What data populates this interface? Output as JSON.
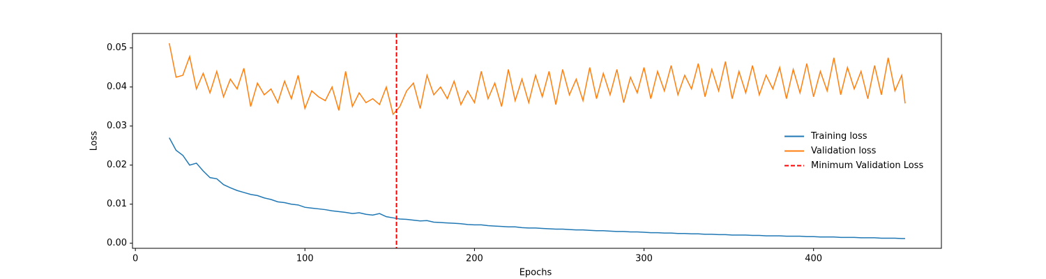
{
  "chart_data": {
    "type": "line",
    "xlabel": "Epochs",
    "ylabel": "Loss",
    "x": [
      20,
      24,
      28,
      32,
      36,
      40,
      44,
      48,
      52,
      56,
      60,
      64,
      68,
      72,
      76,
      80,
      84,
      88,
      92,
      96,
      100,
      104,
      108,
      112,
      116,
      120,
      124,
      128,
      132,
      136,
      140,
      144,
      148,
      152,
      156,
      160,
      164,
      168,
      172,
      176,
      180,
      184,
      188,
      192,
      196,
      200,
      204,
      208,
      212,
      216,
      220,
      224,
      228,
      232,
      236,
      240,
      244,
      248,
      252,
      256,
      260,
      264,
      268,
      272,
      276,
      280,
      284,
      288,
      292,
      296,
      300,
      304,
      308,
      312,
      316,
      320,
      324,
      328,
      332,
      336,
      340,
      344,
      348,
      352,
      356,
      360,
      364,
      368,
      372,
      376,
      380,
      384,
      388,
      392,
      396,
      400,
      404,
      408,
      412,
      416,
      420,
      424,
      428,
      432,
      436,
      440,
      444,
      448,
      452,
      454
    ],
    "series": [
      {
        "name": "Training loss",
        "color": "#1f77b4",
        "values": [
          0.027,
          0.0238,
          0.0225,
          0.02,
          0.0205,
          0.0185,
          0.0168,
          0.0165,
          0.015,
          0.0142,
          0.0135,
          0.013,
          0.0125,
          0.0122,
          0.0116,
          0.0112,
          0.0106,
          0.0104,
          0.01,
          0.0098,
          0.0092,
          0.009,
          0.0088,
          0.0086,
          0.0083,
          0.0081,
          0.0079,
          0.0076,
          0.0078,
          0.0074,
          0.0072,
          0.0076,
          0.0068,
          0.0065,
          0.0062,
          0.0061,
          0.0059,
          0.0057,
          0.0058,
          0.0054,
          0.0053,
          0.0052,
          0.0051,
          0.005,
          0.0048,
          0.0047,
          0.0047,
          0.0045,
          0.0044,
          0.0043,
          0.0042,
          0.0042,
          0.004,
          0.0039,
          0.0039,
          0.0038,
          0.0037,
          0.0036,
          0.0036,
          0.0035,
          0.0034,
          0.0034,
          0.0033,
          0.0032,
          0.0032,
          0.0031,
          0.003,
          0.003,
          0.0029,
          0.0029,
          0.0028,
          0.0027,
          0.0027,
          0.0026,
          0.0026,
          0.0025,
          0.0025,
          0.0024,
          0.0024,
          0.0023,
          0.0023,
          0.0022,
          0.0022,
          0.0021,
          0.0021,
          0.0021,
          0.002,
          0.002,
          0.0019,
          0.0019,
          0.0019,
          0.0018,
          0.0018,
          0.0018,
          0.0017,
          0.0017,
          0.0016,
          0.0016,
          0.0016,
          0.0015,
          0.0015,
          0.0015,
          0.0014,
          0.0014,
          0.0014,
          0.0013,
          0.0013,
          0.0013,
          0.0012,
          0.0012
        ]
      },
      {
        "name": "Validation loss",
        "color": "#ff7f0e",
        "values": [
          0.0512,
          0.0425,
          0.043,
          0.0478,
          0.0395,
          0.0435,
          0.0385,
          0.044,
          0.0375,
          0.042,
          0.0395,
          0.0448,
          0.035,
          0.041,
          0.038,
          0.0395,
          0.036,
          0.0415,
          0.037,
          0.043,
          0.0345,
          0.039,
          0.0375,
          0.0365,
          0.04,
          0.034,
          0.044,
          0.035,
          0.0385,
          0.036,
          0.037,
          0.0355,
          0.04,
          0.033,
          0.035,
          0.039,
          0.041,
          0.0345,
          0.043,
          0.038,
          0.04,
          0.037,
          0.0415,
          0.0355,
          0.039,
          0.036,
          0.044,
          0.037,
          0.041,
          0.035,
          0.0445,
          0.0365,
          0.042,
          0.036,
          0.043,
          0.0375,
          0.044,
          0.0355,
          0.0445,
          0.038,
          0.042,
          0.0365,
          0.045,
          0.037,
          0.0435,
          0.038,
          0.0445,
          0.036,
          0.0425,
          0.0385,
          0.045,
          0.037,
          0.044,
          0.039,
          0.0455,
          0.038,
          0.043,
          0.0395,
          0.046,
          0.0375,
          0.0445,
          0.039,
          0.0465,
          0.037,
          0.044,
          0.0385,
          0.0455,
          0.038,
          0.043,
          0.0395,
          0.045,
          0.037,
          0.0445,
          0.0385,
          0.046,
          0.0375,
          0.044,
          0.039,
          0.0475,
          0.038,
          0.045,
          0.0395,
          0.044,
          0.037,
          0.0455,
          0.038,
          0.0475,
          0.039,
          0.043,
          0.0358
        ]
      }
    ],
    "vlines": [
      {
        "name": "Minimum Validation Loss",
        "color": "red",
        "x": 154
      }
    ],
    "xlim": [
      -1.7,
      475.4
    ],
    "ylim": [
      -0.0013,
      0.0537
    ],
    "xticks": [
      0,
      100,
      200,
      300,
      400
    ],
    "yticks": [
      {
        "value": 0,
        "label": "0.00"
      },
      {
        "value": 0.01,
        "label": "0.01"
      },
      {
        "value": 0.02,
        "label": "0.02"
      },
      {
        "value": 0.03,
        "label": "0.03"
      },
      {
        "value": 0.04,
        "label": "0.04"
      },
      {
        "value": 0.05,
        "label": "0.05"
      }
    ],
    "legend": "center right"
  }
}
